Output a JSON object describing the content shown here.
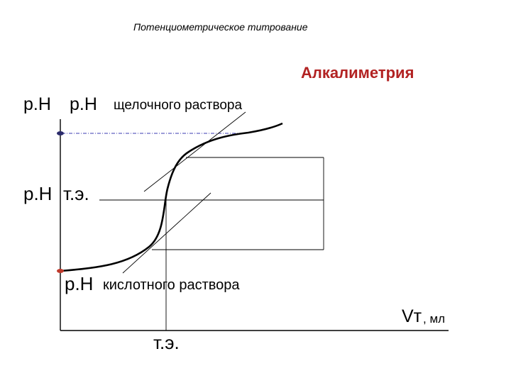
{
  "title": "Потенциометрическое титрование",
  "section_title": "Алкалиметрия",
  "section_color": "#b22222",
  "labels": {
    "ph_axis": "p.H",
    "ph_alkaline": "p.H",
    "alkaline_solution": "щелочного раствора",
    "ph_eq": "p.H",
    "eq_suffix": "т.э.",
    "ph_acid": "p.H",
    "acid_solution": "кислотного раствора",
    "x_axis": "Vт",
    "x_axis_unit": ", мл",
    "eq_point": "т.э."
  },
  "colors": {
    "curve": "#000000",
    "guides": "#000000",
    "dashed_guide": "#3b3bb0",
    "point_top": "#2b2b6b",
    "point_bottom": "#c0392b"
  }
}
